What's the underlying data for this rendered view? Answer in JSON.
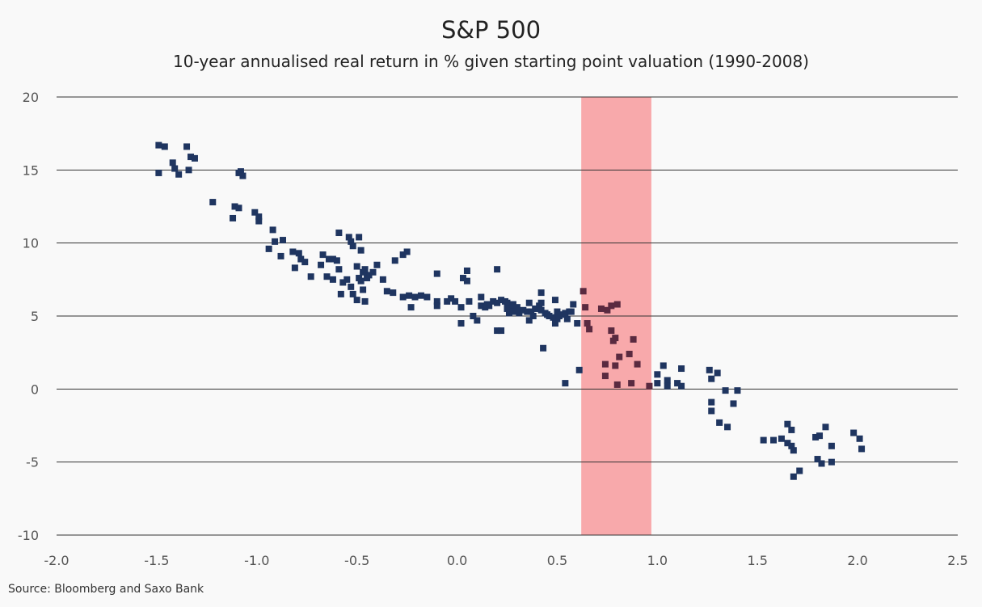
{
  "title": "S&P 500",
  "subtitle": "10-year annualised real return in % given starting point valuation (1990-2008)",
  "source": "Source: Bloomberg and Saxo Bank",
  "colors": {
    "background": "#f9f9f9",
    "points": "#1f3560",
    "points_in_band": "#5a2a40",
    "band": "#f8a9ab",
    "grid": "#333333"
  },
  "chart_data": {
    "type": "scatter",
    "title": "S&P 500",
    "subtitle": "10-year annualised real return in % given starting point valuation (1990-2008)",
    "xlabel": "",
    "ylabel": "",
    "xlim": [
      -2.0,
      2.5
    ],
    "ylim": [
      -10,
      20
    ],
    "x_ticks": [
      "-2.0",
      "-1.5",
      "-1.0",
      "-0.5",
      "0.0",
      "0.5",
      "1.0",
      "1.5",
      "2.0",
      "2.5"
    ],
    "y_ticks": [
      "20",
      "15",
      "10",
      "5",
      "0",
      "-5",
      "-10"
    ],
    "grid": "horizontal",
    "highlight_band": {
      "x_from": 0.62,
      "x_to": 0.97
    },
    "marker": "square",
    "points": [
      [
        -1.49,
        16.7
      ],
      [
        -1.46,
        16.6
      ],
      [
        -1.35,
        16.6
      ],
      [
        -1.42,
        15.5
      ],
      [
        -1.41,
        15.1
      ],
      [
        -1.39,
        14.7
      ],
      [
        -1.49,
        14.8
      ],
      [
        -1.34,
        15.0
      ],
      [
        -1.33,
        15.9
      ],
      [
        -1.31,
        15.8
      ],
      [
        -1.09,
        14.8
      ],
      [
        -1.08,
        14.9
      ],
      [
        -1.07,
        14.6
      ],
      [
        -1.22,
        12.8
      ],
      [
        -1.11,
        12.5
      ],
      [
        -1.09,
        12.4
      ],
      [
        -1.12,
        11.7
      ],
      [
        -1.01,
        12.1
      ],
      [
        -0.99,
        11.8
      ],
      [
        -0.99,
        11.5
      ],
      [
        -0.92,
        10.9
      ],
      [
        -0.87,
        10.2
      ],
      [
        -0.91,
        10.1
      ],
      [
        -0.94,
        9.6
      ],
      [
        -0.88,
        9.1
      ],
      [
        -0.82,
        9.4
      ],
      [
        -0.79,
        9.3
      ],
      [
        -0.78,
        8.9
      ],
      [
        -0.76,
        8.7
      ],
      [
        -0.81,
        8.3
      ],
      [
        -0.73,
        7.7
      ],
      [
        -0.68,
        8.5
      ],
      [
        -0.67,
        9.2
      ],
      [
        -0.64,
        8.9
      ],
      [
        -0.62,
        8.9
      ],
      [
        -0.6,
        8.8
      ],
      [
        -0.65,
        7.7
      ],
      [
        -0.62,
        7.5
      ],
      [
        -0.58,
        6.5
      ],
      [
        -0.57,
        7.3
      ],
      [
        -0.59,
        8.2
      ],
      [
        -0.55,
        7.5
      ],
      [
        -0.53,
        7.0
      ],
      [
        -0.52,
        6.5
      ],
      [
        -0.5,
        6.1
      ],
      [
        -0.47,
        6.8
      ],
      [
        -0.46,
        6.0
      ],
      [
        -0.48,
        7.4
      ],
      [
        -0.49,
        7.6
      ],
      [
        -0.45,
        7.6
      ],
      [
        -0.44,
        7.8
      ],
      [
        -0.47,
        8.0
      ],
      [
        -0.5,
        8.4
      ],
      [
        -0.46,
        8.2
      ],
      [
        -0.54,
        10.4
      ],
      [
        -0.49,
        10.4
      ],
      [
        -0.53,
        10.1
      ],
      [
        -0.52,
        9.8
      ],
      [
        -0.59,
        10.7
      ],
      [
        -0.48,
        9.5
      ],
      [
        -0.42,
        8.0
      ],
      [
        -0.4,
        8.5
      ],
      [
        -0.37,
        7.5
      ],
      [
        -0.35,
        6.7
      ],
      [
        -0.32,
        6.6
      ],
      [
        -0.31,
        8.8
      ],
      [
        -0.27,
        9.2
      ],
      [
        -0.25,
        9.4
      ],
      [
        -0.27,
        6.3
      ],
      [
        -0.24,
        6.4
      ],
      [
        -0.23,
        5.6
      ],
      [
        -0.21,
        6.3
      ],
      [
        -0.18,
        6.4
      ],
      [
        -0.15,
        6.3
      ],
      [
        -0.1,
        6.0
      ],
      [
        -0.1,
        5.7
      ],
      [
        -0.1,
        7.9
      ],
      [
        -0.05,
        6.0
      ],
      [
        -0.03,
        6.2
      ],
      [
        -0.01,
        6.0
      ],
      [
        0.02,
        5.6
      ],
      [
        0.02,
        4.5
      ],
      [
        0.03,
        7.6
      ],
      [
        0.05,
        7.4
      ],
      [
        0.05,
        8.1
      ],
      [
        0.06,
        6.0
      ],
      [
        0.08,
        5.0
      ],
      [
        0.1,
        4.7
      ],
      [
        0.12,
        6.3
      ],
      [
        0.12,
        5.7
      ],
      [
        0.14,
        5.6
      ],
      [
        0.15,
        5.8
      ],
      [
        0.16,
        5.7
      ],
      [
        0.18,
        6.0
      ],
      [
        0.2,
        5.9
      ],
      [
        0.22,
        6.1
      ],
      [
        0.24,
        6.0
      ],
      [
        0.25,
        5.9
      ],
      [
        0.25,
        5.5
      ],
      [
        0.26,
        5.2
      ],
      [
        0.27,
        5.5
      ],
      [
        0.28,
        5.8
      ],
      [
        0.28,
        5.3
      ],
      [
        0.3,
        5.6
      ],
      [
        0.31,
        5.2
      ],
      [
        0.33,
        5.4
      ],
      [
        0.35,
        5.3
      ],
      [
        0.36,
        5.9
      ],
      [
        0.37,
        5.3
      ],
      [
        0.38,
        5.0
      ],
      [
        0.39,
        5.5
      ],
      [
        0.41,
        5.7
      ],
      [
        0.42,
        5.4
      ],
      [
        0.44,
        5.2
      ],
      [
        0.45,
        5.1
      ],
      [
        0.46,
        5.0
      ],
      [
        0.48,
        4.9
      ],
      [
        0.5,
        5.3
      ],
      [
        0.5,
        4.8
      ],
      [
        0.51,
        5.0
      ],
      [
        0.52,
        5.1
      ],
      [
        0.54,
        5.2
      ],
      [
        0.55,
        4.8
      ],
      [
        0.56,
        5.3
      ],
      [
        0.57,
        5.3
      ],
      [
        0.2,
        4.0
      ],
      [
        0.2,
        8.2
      ],
      [
        0.22,
        4.0
      ],
      [
        0.36,
        4.7
      ],
      [
        0.42,
        6.6
      ],
      [
        0.42,
        5.9
      ],
      [
        0.43,
        2.8
      ],
      [
        0.49,
        6.1
      ],
      [
        0.49,
        4.5
      ],
      [
        0.58,
        5.8
      ],
      [
        0.6,
        4.5
      ],
      [
        0.61,
        1.3
      ],
      [
        0.54,
        0.4
      ],
      [
        0.63,
        6.7
      ],
      [
        0.64,
        5.6
      ],
      [
        0.65,
        4.5
      ],
      [
        0.66,
        4.1
      ],
      [
        0.72,
        5.5
      ],
      [
        0.75,
        5.4
      ],
      [
        0.77,
        5.7
      ],
      [
        0.8,
        5.8
      ],
      [
        0.74,
        1.7
      ],
      [
        0.74,
        0.9
      ],
      [
        0.77,
        4.0
      ],
      [
        0.78,
        3.3
      ],
      [
        0.79,
        3.5
      ],
      [
        0.79,
        1.6
      ],
      [
        0.8,
        0.3
      ],
      [
        0.81,
        2.2
      ],
      [
        0.86,
        2.4
      ],
      [
        0.88,
        3.4
      ],
      [
        0.87,
        0.4
      ],
      [
        0.9,
        1.7
      ],
      [
        0.96,
        0.2
      ],
      [
        1.0,
        0.4
      ],
      [
        1.0,
        1.0
      ],
      [
        1.03,
        1.6
      ],
      [
        1.05,
        0.6
      ],
      [
        1.05,
        0.2
      ],
      [
        1.1,
        0.4
      ],
      [
        1.12,
        0.2
      ],
      [
        1.12,
        1.4
      ],
      [
        1.26,
        1.3
      ],
      [
        1.27,
        0.7
      ],
      [
        1.3,
        1.1
      ],
      [
        1.27,
        -0.9
      ],
      [
        1.27,
        -1.5
      ],
      [
        1.31,
        -2.3
      ],
      [
        1.34,
        -0.1
      ],
      [
        1.35,
        -2.6
      ],
      [
        1.38,
        -1.0
      ],
      [
        1.4,
        -0.1
      ],
      [
        1.53,
        -3.5
      ],
      [
        1.58,
        -3.5
      ],
      [
        1.62,
        -3.4
      ],
      [
        1.65,
        -2.4
      ],
      [
        1.65,
        -3.7
      ],
      [
        1.67,
        -2.8
      ],
      [
        1.67,
        -3.9
      ],
      [
        1.68,
        -4.2
      ],
      [
        1.68,
        -6.0
      ],
      [
        1.71,
        -5.6
      ],
      [
        1.79,
        -3.3
      ],
      [
        1.8,
        -4.8
      ],
      [
        1.81,
        -3.2
      ],
      [
        1.82,
        -5.1
      ],
      [
        1.84,
        -2.6
      ],
      [
        1.87,
        -3.9
      ],
      [
        1.87,
        -5.0
      ],
      [
        1.98,
        -3.0
      ],
      [
        2.01,
        -3.4
      ],
      [
        2.02,
        -4.1
      ]
    ]
  }
}
